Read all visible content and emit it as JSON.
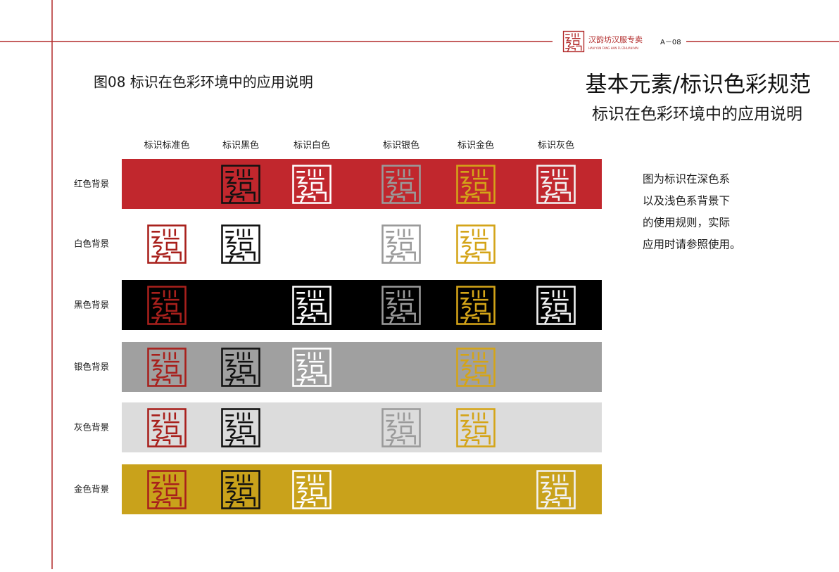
{
  "header": {
    "brand": "汉韵坊汉服专卖",
    "brand_en": "HAN YUN FANG HAN FU ZHUAN MAI",
    "page": "A－08"
  },
  "figure_title": "图08 标识在色彩环境中的应用说明",
  "heading": {
    "title": "基本元素/标识色彩规范",
    "subtitle": "标识在色彩环境中的应用说明"
  },
  "columns": [
    "标识标准色",
    "标识黑色",
    "标识白色",
    "标识银色",
    "标识金色",
    "标识灰色"
  ],
  "rows": [
    "红色背景",
    "白色背景",
    "黑色背景",
    "银色背景",
    "灰色背景",
    "金色背景"
  ],
  "description": [
    "图为标识在深色系",
    "以及浅色系背景下",
    "的使用规则，实际",
    "应用时请参照使用。"
  ]
}
